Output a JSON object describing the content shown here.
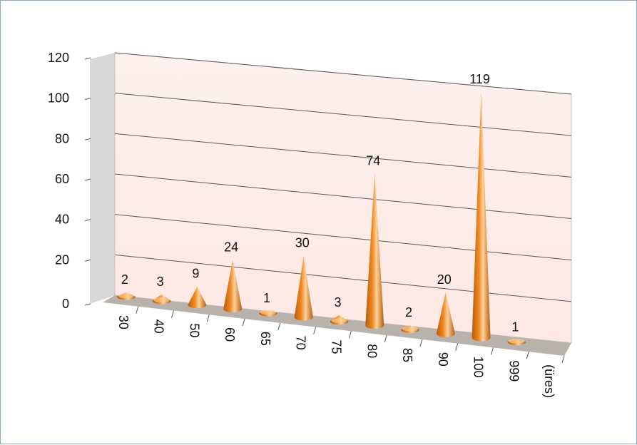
{
  "chart_data": {
    "type": "bar",
    "style": "3d-cone",
    "categories": [
      "30",
      "40",
      "50",
      "60",
      "65",
      "70",
      "75",
      "80",
      "85",
      "90",
      "100",
      "999",
      "(üres)"
    ],
    "values": [
      2,
      3,
      9,
      24,
      1,
      30,
      3,
      74,
      2,
      20,
      119,
      1,
      null
    ],
    "data_labels": [
      "2",
      "3",
      "9",
      "24",
      "1",
      "30",
      "3",
      "74",
      "2",
      "20",
      "119",
      "1",
      ""
    ],
    "title": "",
    "xlabel": "",
    "ylabel": "",
    "ylim": [
      0,
      120
    ],
    "yticks": [
      "0",
      "20",
      "40",
      "60",
      "80",
      "100",
      "120"
    ],
    "grid": true,
    "legend": "none",
    "colors": {
      "cone": "#f08a24",
      "cone_light": "#ffd19a",
      "cone_dark": "#b85c0a",
      "back_wall": "#fde8e4",
      "side_wall": "#d8d8d8",
      "floor": "#b8b2ac",
      "gridline": "#5a5a5a"
    }
  }
}
